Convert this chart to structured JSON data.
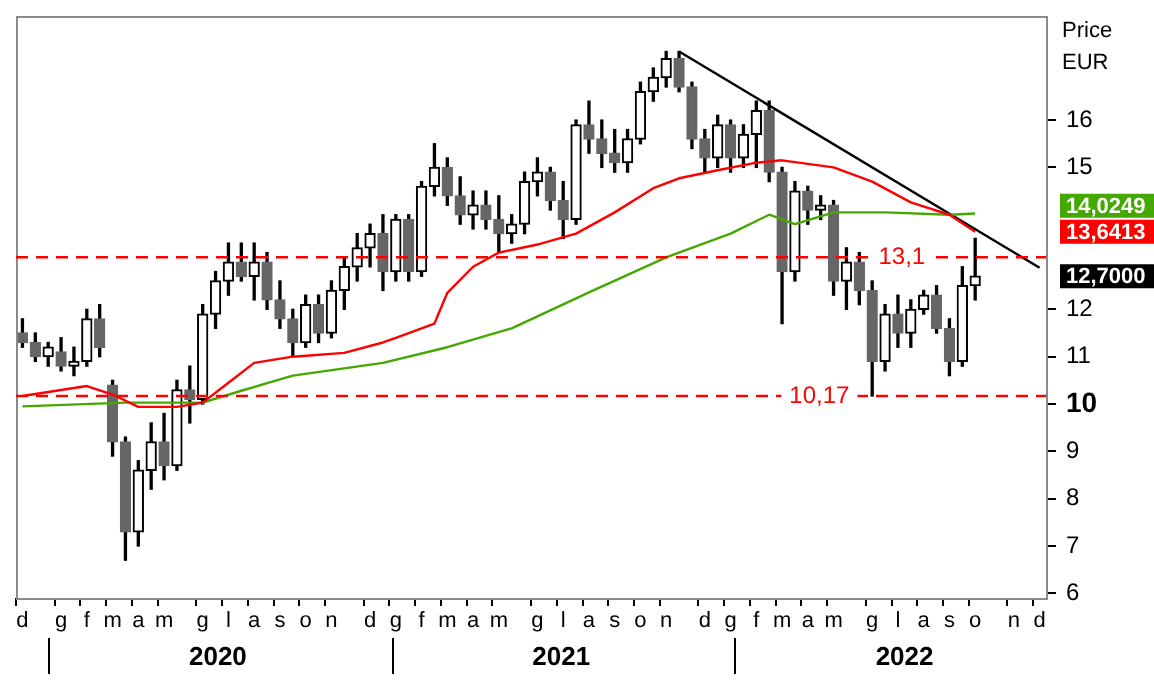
{
  "chart_data": {
    "type": "candlestick",
    "ylabel": "Price EUR",
    "categories": [
      "d",
      null,
      null,
      "g",
      null,
      "f",
      null,
      "m",
      null,
      "a",
      null,
      "m",
      null,
      null,
      "g",
      null,
      "l",
      null,
      "a",
      null,
      "s",
      null,
      "o",
      null,
      "n",
      null,
      null,
      "d",
      null,
      "g",
      null,
      "f",
      null,
      "m",
      null,
      "a",
      null,
      "m",
      null,
      null,
      "g",
      null,
      "l",
      null,
      "a",
      null,
      "s",
      null,
      "o",
      null,
      "n",
      null,
      null,
      "d",
      null,
      "g",
      null,
      "f",
      null,
      "m",
      null,
      "a",
      null,
      "m",
      null,
      null,
      "g",
      null,
      "l",
      null,
      "a",
      null,
      "s",
      null,
      "o",
      null,
      null,
      "n",
      null,
      "d"
    ],
    "ohlc": [
      [
        11.5,
        11.8,
        11.2,
        11.3
      ],
      [
        11.3,
        11.5,
        10.9,
        11.0
      ],
      [
        11.0,
        11.3,
        10.8,
        11.2
      ],
      [
        11.1,
        11.4,
        10.7,
        10.8
      ],
      [
        10.8,
        11.2,
        10.6,
        10.9
      ],
      [
        10.9,
        12.0,
        10.8,
        11.8
      ],
      [
        11.8,
        12.1,
        11.0,
        11.2
      ],
      [
        10.4,
        10.5,
        8.9,
        9.2
      ],
      [
        9.2,
        9.3,
        6.7,
        7.3
      ],
      [
        7.3,
        8.8,
        7.0,
        8.6
      ],
      [
        8.6,
        9.6,
        8.2,
        9.2
      ],
      [
        9.2,
        9.8,
        8.4,
        8.7
      ],
      [
        8.7,
        10.5,
        8.6,
        10.3
      ],
      [
        10.3,
        10.8,
        9.6,
        10.1
      ],
      [
        10.1,
        12.1,
        10.0,
        11.9
      ],
      [
        11.9,
        12.8,
        11.6,
        12.6
      ],
      [
        12.6,
        13.4,
        12.3,
        13.0
      ],
      [
        13.0,
        13.4,
        12.6,
        12.7
      ],
      [
        12.7,
        13.4,
        12.2,
        13.0
      ],
      [
        13.0,
        13.2,
        12.0,
        12.2
      ],
      [
        12.2,
        12.6,
        11.6,
        11.8
      ],
      [
        11.8,
        12.0,
        11.0,
        11.3
      ],
      [
        11.3,
        12.3,
        11.2,
        12.1
      ],
      [
        12.1,
        12.3,
        11.3,
        11.5
      ],
      [
        11.5,
        12.6,
        11.4,
        12.4
      ],
      [
        12.4,
        13.1,
        12.0,
        12.9
      ],
      [
        12.9,
        13.6,
        12.6,
        13.3
      ],
      [
        13.3,
        13.8,
        12.9,
        13.6
      ],
      [
        13.6,
        14.0,
        12.4,
        12.8
      ],
      [
        12.8,
        14.0,
        12.6,
        13.9
      ],
      [
        13.9,
        14.0,
        12.6,
        12.8
      ],
      [
        12.8,
        14.7,
        12.7,
        14.6
      ],
      [
        14.6,
        15.5,
        14.4,
        15.0
      ],
      [
        15.0,
        15.2,
        14.2,
        14.4
      ],
      [
        14.4,
        14.8,
        13.8,
        14.0
      ],
      [
        14.0,
        14.5,
        13.7,
        14.2
      ],
      [
        14.2,
        14.5,
        13.7,
        13.9
      ],
      [
        13.9,
        14.4,
        13.2,
        13.6
      ],
      [
        13.6,
        14.0,
        13.4,
        13.8
      ],
      [
        13.8,
        14.9,
        13.6,
        14.7
      ],
      [
        14.7,
        15.2,
        14.4,
        14.9
      ],
      [
        14.9,
        15.0,
        14.1,
        14.3
      ],
      [
        14.3,
        14.7,
        13.5,
        13.9
      ],
      [
        13.9,
        16.0,
        13.8,
        15.9
      ],
      [
        15.9,
        16.4,
        15.3,
        15.6
      ],
      [
        15.6,
        16.0,
        15.0,
        15.3
      ],
      [
        15.3,
        15.8,
        14.9,
        15.1
      ],
      [
        15.1,
        15.8,
        14.9,
        15.6
      ],
      [
        15.6,
        16.8,
        15.5,
        16.6
      ],
      [
        16.6,
        17.1,
        16.4,
        16.9
      ],
      [
        16.9,
        17.45,
        16.7,
        17.3
      ],
      [
        17.3,
        17.45,
        16.6,
        16.7
      ],
      [
        16.7,
        16.8,
        15.4,
        15.6
      ],
      [
        15.6,
        15.8,
        14.9,
        15.2
      ],
      [
        15.2,
        16.1,
        15.0,
        15.9
      ],
      [
        15.9,
        16.0,
        14.9,
        15.2
      ],
      [
        15.2,
        15.9,
        15.0,
        15.7
      ],
      [
        15.7,
        16.4,
        15.0,
        16.2
      ],
      [
        16.2,
        16.4,
        14.7,
        14.9
      ],
      [
        14.9,
        15.0,
        11.7,
        12.8
      ],
      [
        12.8,
        14.7,
        12.6,
        14.5
      ],
      [
        14.5,
        14.6,
        13.8,
        14.1
      ],
      [
        14.1,
        14.4,
        13.9,
        14.2
      ],
      [
        14.2,
        14.3,
        12.3,
        12.6
      ],
      [
        12.6,
        13.3,
        12.0,
        13.0
      ],
      [
        13.0,
        13.2,
        12.1,
        12.4
      ],
      [
        12.4,
        12.6,
        10.17,
        10.9
      ],
      [
        10.9,
        12.1,
        10.7,
        11.9
      ],
      [
        11.9,
        12.3,
        11.2,
        11.5
      ],
      [
        11.5,
        12.2,
        11.2,
        12.0
      ],
      [
        12.0,
        12.4,
        11.9,
        12.3
      ],
      [
        12.3,
        12.5,
        11.5,
        11.6
      ],
      [
        11.6,
        11.8,
        10.6,
        10.9
      ],
      [
        10.9,
        12.9,
        10.8,
        12.5
      ],
      [
        12.5,
        13.5,
        12.2,
        12.7
      ],
      null,
      null,
      null,
      null,
      null
    ],
    "colors": [
      "#666666",
      "#666666",
      "#000000",
      "#666666",
      "#000000",
      "#000000",
      "#666666",
      "#666666",
      "#666666",
      "#000000",
      "#000000",
      "#666666",
      "#000000",
      "#666666",
      "#000000",
      "#000000",
      "#000000",
      "#666666",
      "#000000",
      "#666666",
      "#666666",
      "#666666",
      "#000000",
      "#666666",
      "#000000",
      "#000000",
      "#000000",
      "#000000",
      "#666666",
      "#000000",
      "#666666",
      "#000000",
      "#000000",
      "#666666",
      "#666666",
      "#000000",
      "#666666",
      "#666666",
      "#000000",
      "#000000",
      "#000000",
      "#666666",
      "#666666",
      "#000000",
      "#666666",
      "#666666",
      "#666666",
      "#000000",
      "#000000",
      "#000000",
      "#000000",
      "#666666",
      "#666666",
      "#666666",
      "#000000",
      "#666666",
      "#000000",
      "#000000",
      "#666666",
      "#666666",
      "#000000",
      "#666666",
      "#000000",
      "#666666",
      "#000000",
      "#666666",
      "#666666",
      "#000000",
      "#666666",
      "#000000",
      "#000000",
      "#666666",
      "#666666",
      "#000000",
      "#000000",
      null,
      null,
      null,
      null,
      null
    ],
    "series": [
      {
        "type": "line",
        "color": "#ff0000",
        "values": [
          10.17,
          null,
          null,
          null,
          null,
          10.38,
          null,
          10.2,
          null,
          9.94,
          null,
          null,
          9.94,
          null,
          10.03,
          null,
          10.45,
          null,
          10.87,
          null,
          null,
          11.0,
          null,
          null,
          null,
          11.08,
          null,
          null,
          11.3,
          11.4,
          null,
          null,
          11.7,
          12.35,
          null,
          12.9,
          null,
          13.2,
          null,
          null,
          13.37,
          null,
          null,
          13.6,
          null,
          null,
          14.05,
          null,
          null,
          14.56,
          null,
          14.77,
          null,
          null,
          14.94,
          null,
          null,
          15.1,
          null,
          15.15,
          null,
          null,
          null,
          15.0,
          null,
          null,
          14.7,
          null,
          null,
          14.26,
          null,
          null,
          14.0,
          null,
          13.6413,
          null,
          null,
          null,
          null,
          null
        ]
      },
      {
        "type": "line",
        "color": "#44a800",
        "values": [
          9.95,
          null,
          null,
          null,
          null,
          null,
          null,
          null,
          10.03,
          null,
          null,
          null,
          null,
          null,
          10.03,
          null,
          null,
          10.28,
          null,
          null,
          null,
          10.6,
          null,
          null,
          null,
          null,
          null,
          null,
          10.87,
          null,
          null,
          null,
          null,
          11.2,
          null,
          null,
          null,
          null,
          11.6,
          null,
          null,
          null,
          null,
          null,
          12.36,
          null,
          null,
          null,
          null,
          null,
          13.1,
          null,
          null,
          null,
          null,
          13.6,
          null,
          null,
          14.0,
          null,
          13.8,
          null,
          null,
          14.05,
          null,
          null,
          null,
          14.05,
          null,
          null,
          null,
          null,
          14.0,
          null,
          14.0249,
          null,
          null,
          null,
          null,
          null
        ]
      },
      {
        "type": "line",
        "color": "#000000",
        "values": [
          null,
          null,
          null,
          null,
          null,
          null,
          null,
          null,
          null,
          null,
          null,
          null,
          null,
          null,
          null,
          null,
          null,
          null,
          null,
          null,
          null,
          null,
          null,
          null,
          null,
          null,
          null,
          null,
          null,
          null,
          null,
          null,
          null,
          null,
          null,
          null,
          null,
          null,
          null,
          null,
          null,
          null,
          null,
          null,
          null,
          null,
          null,
          null,
          null,
          null,
          null,
          17.45,
          null,
          null,
          null,
          null,
          null,
          null,
          null,
          null,
          null,
          null,
          null,
          null,
          null,
          null,
          null,
          null,
          null,
          null,
          null,
          null,
          null,
          null,
          null,
          null,
          null,
          null,
          null,
          12.88
        ]
      }
    ],
    "ylim": [
      5.9,
      18.2
    ],
    "yticks": [
      6,
      7,
      8,
      9,
      10,
      11,
      12,
      {
        "value": 12.7,
        "label": "12,7000"
      },
      {
        "value": 13.6413,
        "label": "13,6413"
      },
      {
        "value": 14.0249,
        "label": "14,0249"
      },
      15,
      16
    ],
    "ref_lines": [
      {
        "axis": "y",
        "value": 13.1,
        "label": "13,1",
        "color": "#ff0000",
        "line_style": "dashed"
      },
      {
        "axis": "y",
        "value": 10.17,
        "label": "10,17",
        "color": "#ff0000",
        "line_style": "dashed"
      }
    ],
    "annotations": [
      "2020",
      "2021",
      "2022"
    ]
  }
}
